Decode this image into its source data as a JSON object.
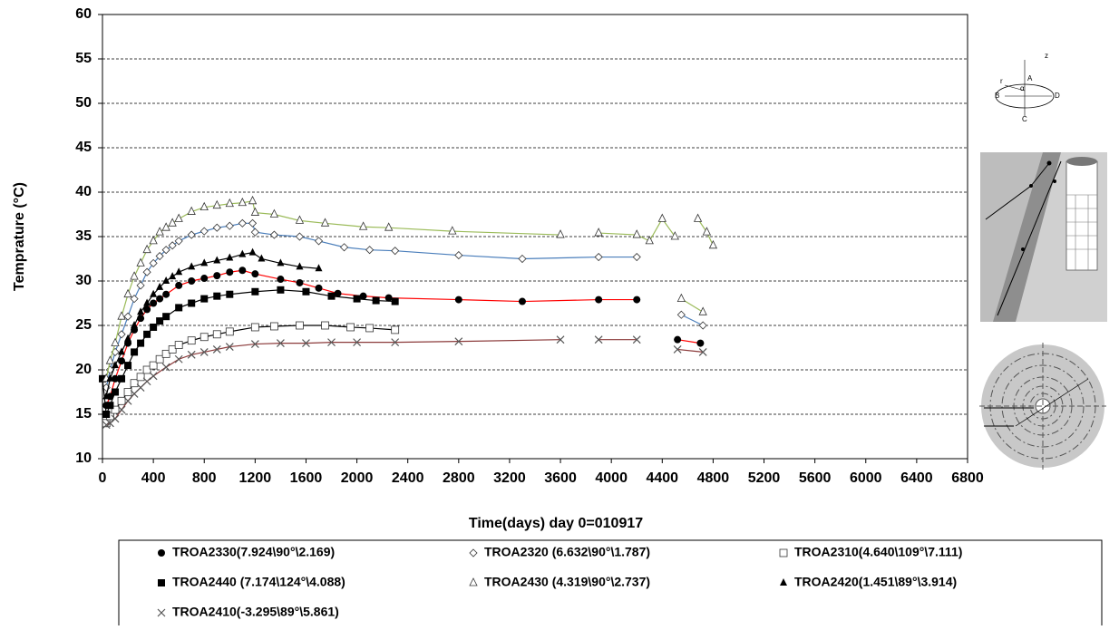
{
  "chart_data": {
    "type": "line",
    "xlabel": "Time(days)  day 0=010917",
    "ylabel": "Temprature (°C)",
    "xlim": [
      0,
      6800
    ],
    "xticks": [
      0,
      400,
      800,
      1200,
      1600,
      2000,
      2400,
      2800,
      3200,
      3600,
      4000,
      4400,
      4800,
      5200,
      5600,
      6000,
      6400,
      6800
    ],
    "ylim": [
      10,
      60
    ],
    "yticks": [
      10,
      15,
      20,
      25,
      30,
      35,
      40,
      45,
      50,
      55,
      60
    ],
    "grid": true,
    "series": [
      {
        "name": "TROA2330(7.924\\90°\\2.169)",
        "marker": "circle",
        "color": "#ff0000",
        "x": [
          30,
          60,
          100,
          150,
          200,
          250,
          300,
          350,
          400,
          450,
          500,
          600,
          700,
          800,
          900,
          1000,
          1100,
          1200,
          1400,
          1550,
          1700,
          1850,
          2050,
          2250,
          2800,
          3300,
          3900,
          4200,
          null,
          4520,
          4700
        ],
        "values": [
          16,
          17,
          19,
          21,
          23,
          24.5,
          25.8,
          26.8,
          27.5,
          28,
          28.5,
          29.5,
          30,
          30.3,
          30.6,
          31,
          31.2,
          30.8,
          30.2,
          29.8,
          29.2,
          28.6,
          28.3,
          28.1,
          27.9,
          27.7,
          27.9,
          27.9,
          null,
          23.4,
          23
        ]
      },
      {
        "name": "TROA2320 (6.632\\90°\\1.787)",
        "marker": "diamond",
        "color": "#4a7ebb",
        "x": [
          30,
          60,
          100,
          150,
          200,
          250,
          300,
          350,
          400,
          450,
          500,
          550,
          600,
          700,
          800,
          900,
          1000,
          1100,
          1180,
          1200,
          1350,
          1550,
          1700,
          1900,
          2100,
          2300,
          2800,
          3300,
          3900,
          4200,
          null,
          4550,
          4720
        ],
        "values": [
          18,
          20,
          22,
          24,
          26,
          28,
          29.5,
          31,
          32,
          32.8,
          33.5,
          34,
          34.5,
          35.2,
          35.6,
          36,
          36.2,
          36.5,
          36.5,
          35.5,
          35.2,
          35,
          34.5,
          33.8,
          33.5,
          33.4,
          32.9,
          32.5,
          32.7,
          32.7,
          null,
          26.2,
          25
        ]
      },
      {
        "name": "TROA2310(4.640\\109°\\7.111)",
        "marker": "square-open",
        "color": "#000000",
        "x": [
          30,
          60,
          100,
          150,
          200,
          250,
          300,
          350,
          400,
          450,
          500,
          550,
          600,
          700,
          800,
          900,
          1000,
          1200,
          1350,
          1550,
          1750,
          1950,
          2100,
          2300
        ],
        "values": [
          14,
          14.8,
          15.5,
          16.5,
          17.5,
          18.5,
          19.2,
          20,
          20.5,
          21.2,
          21.8,
          22.3,
          22.8,
          23.3,
          23.7,
          24,
          24.3,
          24.8,
          24.9,
          25,
          25,
          24.8,
          24.7,
          24.5
        ]
      },
      {
        "name": "TROA2440 (7.174\\124°\\4.088)",
        "marker": "square",
        "color": "#000000",
        "x": [
          0,
          30,
          60,
          100,
          150,
          200,
          250,
          300,
          350,
          400,
          450,
          500,
          600,
          700,
          800,
          900,
          1000,
          1200,
          1400,
          1600,
          1800,
          2000,
          2150,
          2300
        ],
        "values": [
          19,
          15,
          16,
          17.5,
          19,
          20.5,
          22,
          23,
          24,
          24.8,
          25.5,
          26,
          27,
          27.5,
          28,
          28.3,
          28.5,
          28.8,
          29,
          28.8,
          28.3,
          28,
          27.8,
          27.7
        ]
      },
      {
        "name": "TROA2430 (4.319\\90°\\2.737)",
        "marker": "triangle-open",
        "color": "#9bbb59",
        "x": [
          30,
          60,
          100,
          150,
          200,
          250,
          300,
          350,
          400,
          450,
          500,
          550,
          600,
          700,
          800,
          900,
          1000,
          1100,
          1180,
          1200,
          1350,
          1550,
          1750,
          2050,
          2250,
          2750,
          3600,
          null,
          3900,
          4200,
          4300,
          4400,
          4500,
          null,
          4680,
          4750,
          4800,
          null,
          4550,
          4720
        ],
        "values": [
          19,
          21,
          23,
          26,
          28.5,
          30.5,
          32,
          33.5,
          34.5,
          35.5,
          36,
          36.5,
          37,
          37.8,
          38.3,
          38.5,
          38.7,
          38.8,
          39,
          37.7,
          37.5,
          36.8,
          36.5,
          36.1,
          36,
          35.6,
          35.2,
          null,
          35.4,
          35.2,
          34.5,
          37,
          35,
          null,
          37,
          35.5,
          34,
          null,
          28,
          26.5
        ]
      },
      {
        "name": "TROA2420(1.451\\89°\\3.914)",
        "marker": "triangle",
        "color": "#000000",
        "x": [
          30,
          60,
          100,
          150,
          200,
          250,
          300,
          350,
          400,
          450,
          500,
          550,
          600,
          700,
          800,
          900,
          1000,
          1100,
          1180,
          1250,
          1400,
          1550,
          1700
        ],
        "values": [
          17,
          19,
          20.5,
          22,
          23.5,
          25,
          26.5,
          27.5,
          28.5,
          29.3,
          30,
          30.5,
          31,
          31.6,
          32,
          32.3,
          32.6,
          33,
          33.2,
          32.5,
          32,
          31.6,
          31.4
        ]
      },
      {
        "name": "TROA2410(-3.295\\89°\\5.861)",
        "marker": "x",
        "color": "#8b3a3a",
        "x": [
          30,
          60,
          100,
          150,
          200,
          250,
          300,
          350,
          400,
          500,
          600,
          700,
          800,
          900,
          1000,
          1200,
          1400,
          1600,
          1800,
          2000,
          2300,
          2800,
          3600,
          null,
          3900,
          4200,
          null,
          4520,
          4720
        ],
        "values": [
          13.8,
          14,
          14.5,
          15.5,
          16.5,
          17.3,
          18,
          18.7,
          19.3,
          20.3,
          21.2,
          21.7,
          22,
          22.3,
          22.6,
          22.9,
          23,
          23,
          23.1,
          23.1,
          23.1,
          23.2,
          23.4,
          null,
          23.4,
          23.4,
          null,
          22.3,
          22
        ]
      }
    ]
  },
  "inset_labels": [
    "z",
    "r",
    "A",
    "B",
    "D",
    "C",
    "α"
  ]
}
